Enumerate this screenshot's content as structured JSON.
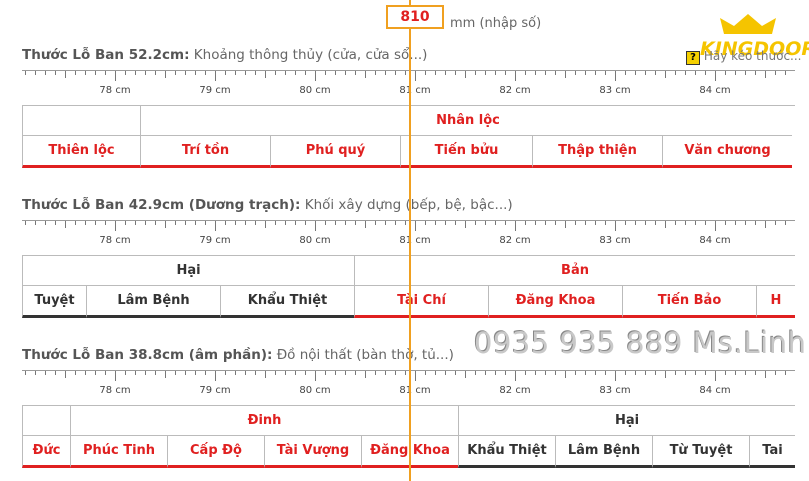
{
  "input": {
    "value": "810",
    "unit": "mm (nhập số)"
  },
  "logo": "KINGDOOR",
  "hint": {
    "icon": "?",
    "text": "Hãy kéo thước..."
  },
  "watermark": "0935 935 889 Ms.Linh",
  "rulers": [
    {
      "title": "Thước Lỗ Ban 52.2cm:",
      "subtitle": "Khoảng thông thủy (cửa, cửa sổ...)",
      "scale": [
        "78 cm",
        "79 cm",
        "80 cm",
        "81 cm",
        "82 cm",
        "83 cm",
        "84 cm"
      ],
      "rows": [
        [
          {
            "label": null,
            "color": "#333"
          },
          {
            "label": "Nhân lộc",
            "color": "#e02020"
          }
        ],
        [
          {
            "label": "Thiên lộc",
            "color": "#e02020"
          },
          {
            "label": "Trí tồn",
            "color": "#e02020"
          },
          {
            "label": "Phú quý",
            "color": "#e02020"
          },
          {
            "label": "Tiến bửu",
            "color": "#e02020"
          },
          {
            "label": "Thập thiện",
            "color": "#e02020"
          },
          {
            "label": "Văn chương",
            "color": "#e02020"
          }
        ]
      ]
    },
    {
      "title": "Thước Lỗ Ban 42.9cm (Dương trạch):",
      "subtitle": "Khối xây dựng (bếp, bệ, bậc...)",
      "scale": [
        "78 cm",
        "79 cm",
        "80 cm",
        "81 cm",
        "82 cm",
        "83 cm",
        "84 cm"
      ],
      "rows": [
        [
          {
            "label": "Hại",
            "color": "#333"
          },
          {
            "label": "Bản",
            "color": "#e02020"
          }
        ],
        [
          {
            "label": "Tuyệt",
            "color": "#333"
          },
          {
            "label": "Lâm Bệnh",
            "color": "#333"
          },
          {
            "label": "Khẩu Thiệt",
            "color": "#333"
          },
          {
            "label": "Tài Chí",
            "color": "#e02020"
          },
          {
            "label": "Đăng Khoa",
            "color": "#e02020"
          },
          {
            "label": "Tiến Bảo",
            "color": "#e02020"
          },
          {
            "label": "H",
            "color": "#e02020"
          }
        ]
      ]
    },
    {
      "title": "Thước Lỗ Ban 38.8cm (âm phần):",
      "subtitle": "Đồ nội thất (bàn thờ, tủ...)",
      "scale": [
        "78 cm",
        "79 cm",
        "80 cm",
        "81 cm",
        "82 cm",
        "83 cm",
        "84 cm"
      ],
      "rows": [
        [
          {
            "label": null,
            "color": "#333"
          },
          {
            "label": "Đinh",
            "color": "#e02020"
          },
          {
            "label": "Hại",
            "color": "#333"
          }
        ],
        [
          {
            "label": "Đức",
            "color": "#e02020"
          },
          {
            "label": "Phúc Tinh",
            "color": "#e02020"
          },
          {
            "label": "Cấp Độ",
            "color": "#e02020"
          },
          {
            "label": "Tài Vượng",
            "color": "#e02020"
          },
          {
            "label": "Đăng Khoa",
            "color": "#e02020"
          },
          {
            "label": "Khẩu Thiệt",
            "color": "#333"
          },
          {
            "label": "Lâm Bệnh",
            "color": "#333"
          },
          {
            "label": "Từ Tuyệt",
            "color": "#333"
          },
          {
            "label": "Tai",
            "color": "#333"
          }
        ]
      ]
    }
  ]
}
